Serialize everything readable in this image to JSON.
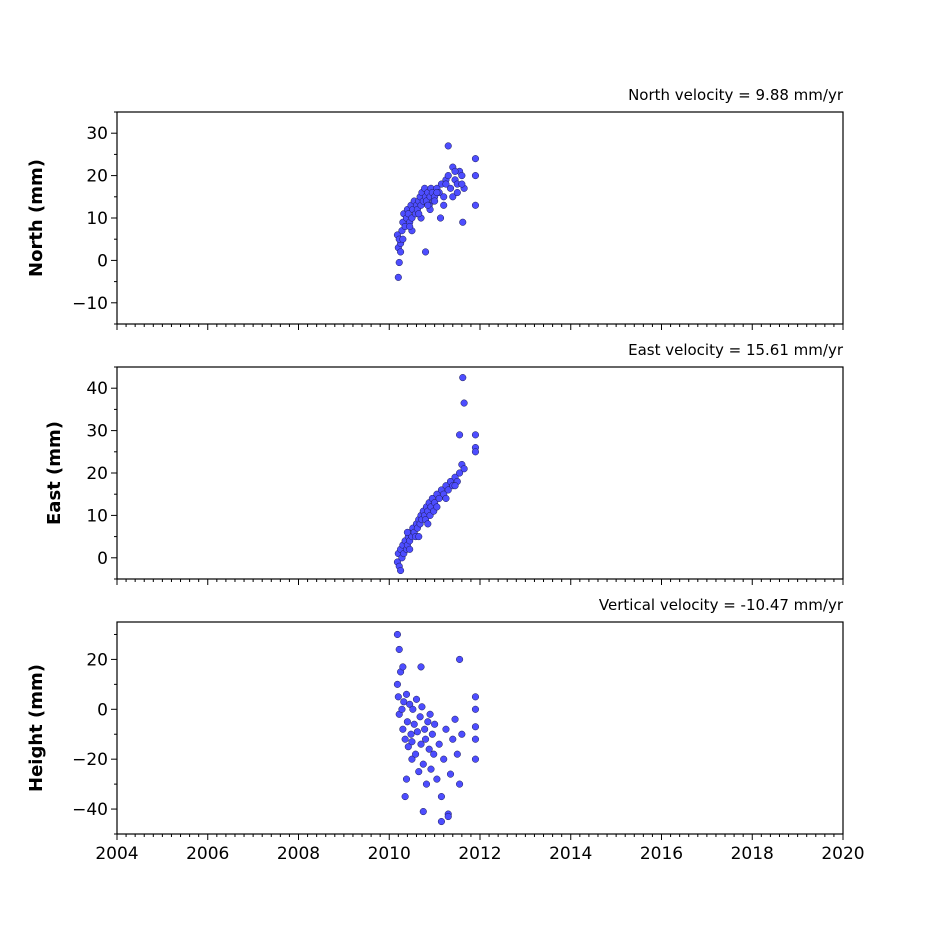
{
  "chart_data": [
    {
      "type": "scatter",
      "title": "North velocity = 9.88 mm/yr",
      "xlabel": "",
      "ylabel": "North (mm)",
      "xlim": [
        2004,
        2020
      ],
      "ylim": [
        -15,
        35
      ],
      "yticks": [
        -10,
        0,
        10,
        20,
        30
      ],
      "point_color": "#4d4dff",
      "x": [
        2010.18,
        2010.2,
        2010.22,
        2010.25,
        2010.28,
        2010.3,
        2010.32,
        2010.35,
        2010.38,
        2010.4,
        2010.42,
        2010.45,
        2010.48,
        2010.5,
        2010.52,
        2010.55,
        2010.58,
        2010.6,
        2010.62,
        2010.65,
        2010.68,
        2010.7,
        2010.72,
        2010.75,
        2010.78,
        2010.8,
        2010.82,
        2010.85,
        2010.88,
        2010.9,
        2010.92,
        2010.95,
        2010.98,
        2011.0,
        2011.05,
        2011.1,
        2011.15,
        2011.2,
        2011.25,
        2011.3,
        2011.35,
        2011.4,
        2011.45,
        2011.5,
        2011.55,
        2011.6,
        2011.65,
        2011.9,
        2011.9,
        2011.9,
        2010.2,
        2010.22,
        2010.8,
        2011.3,
        2011.62,
        2011.13,
        2010.3,
        2010.5,
        2010.7,
        2010.9,
        2011.0,
        2011.2,
        2011.4,
        2011.5,
        2011.6,
        2010.25,
        2010.45,
        2010.65,
        2010.85,
        2011.05,
        2011.25,
        2011.45
      ],
      "y": [
        6,
        3,
        -0.5,
        4,
        7,
        9,
        11,
        8,
        10,
        12,
        11,
        9,
        13,
        10,
        12,
        14,
        11,
        13,
        12,
        14,
        15,
        13,
        16,
        14,
        17,
        15,
        14,
        16,
        13,
        15,
        17,
        16,
        14,
        15,
        17,
        16,
        18,
        15,
        19,
        20,
        17,
        22,
        19,
        18,
        21,
        20,
        17,
        24,
        20,
        13,
        -4,
        5,
        2,
        27,
        9,
        10,
        5,
        7,
        10,
        12,
        14,
        13,
        15,
        16,
        18,
        2,
        8,
        11,
        13,
        16,
        18,
        21
      ]
    },
    {
      "type": "scatter",
      "title": "East velocity = 15.61 mm/yr",
      "xlabel": "",
      "ylabel": "East (mm)",
      "xlim": [
        2004,
        2020
      ],
      "ylim": [
        -5,
        45
      ],
      "yticks": [
        0,
        10,
        20,
        30,
        40
      ],
      "point_color": "#4d4dff",
      "x": [
        2010.18,
        2010.2,
        2010.22,
        2010.25,
        2010.28,
        2010.3,
        2010.32,
        2010.35,
        2010.38,
        2010.4,
        2010.42,
        2010.45,
        2010.48,
        2010.5,
        2010.52,
        2010.55,
        2010.58,
        2010.6,
        2010.62,
        2010.65,
        2010.68,
        2010.7,
        2010.72,
        2010.75,
        2010.78,
        2010.8,
        2010.82,
        2010.85,
        2010.88,
        2010.9,
        2010.92,
        2010.95,
        2010.98,
        2011.0,
        2011.05,
        2011.1,
        2011.15,
        2011.2,
        2011.25,
        2011.3,
        2011.35,
        2011.4,
        2011.45,
        2011.5,
        2011.55,
        2011.6,
        2011.65,
        2011.62,
        2011.65,
        2011.9,
        2011.9,
        2011.9,
        2010.4,
        2010.25,
        2010.45,
        2010.65,
        2010.85,
        2011.05,
        2011.25,
        2011.45,
        2011.55
      ],
      "y": [
        -1,
        1,
        -2,
        2,
        0,
        3,
        1,
        4,
        2,
        3,
        5,
        4,
        6,
        5,
        7,
        6,
        5,
        8,
        7,
        9,
        8,
        10,
        9,
        11,
        10,
        9,
        12,
        11,
        13,
        10,
        12,
        14,
        11,
        13,
        15,
        14,
        16,
        15,
        17,
        16,
        18,
        17,
        19,
        18,
        20,
        22,
        21,
        42.5,
        36.5,
        29,
        26,
        25,
        6,
        -3,
        2,
        5,
        8,
        12,
        14,
        17,
        29
      ],
      "annotations": []
    },
    {
      "type": "scatter",
      "title": "Vertical velocity = -10.47 mm/yr",
      "xlabel": "",
      "ylabel": "Height (mm)",
      "xlim": [
        2004,
        2020
      ],
      "ylim": [
        -50,
        35
      ],
      "yticks": [
        -40,
        -20,
        0,
        20
      ],
      "xticks": [
        2004,
        2006,
        2008,
        2010,
        2012,
        2014,
        2016,
        2018,
        2020
      ],
      "point_color": "#4d4dff",
      "x": [
        2010.18,
        2010.2,
        2010.22,
        2010.25,
        2010.28,
        2010.3,
        2010.32,
        2010.35,
        2010.38,
        2010.4,
        2010.42,
        2010.45,
        2010.48,
        2010.5,
        2010.52,
        2010.55,
        2010.58,
        2010.6,
        2010.62,
        2010.65,
        2010.68,
        2010.7,
        2010.72,
        2010.75,
        2010.78,
        2010.8,
        2010.82,
        2010.85,
        2010.88,
        2010.9,
        2010.92,
        2010.95,
        2010.98,
        2011.0,
        2011.05,
        2011.1,
        2011.15,
        2011.2,
        2011.25,
        2011.3,
        2011.35,
        2011.4,
        2011.45,
        2011.5,
        2011.55,
        2011.6,
        2011.9,
        2011.9,
        2011.9,
        2011.9,
        2011.9,
        2010.18,
        2010.22,
        2010.38,
        2010.3,
        2010.35,
        2010.7,
        2011.15,
        2011.55,
        2010.75,
        2010.5,
        2011.3
      ],
      "y": [
        10,
        5,
        -2,
        15,
        0,
        -8,
        3,
        -12,
        6,
        -5,
        -15,
        2,
        -10,
        -20,
        0,
        -6,
        -18,
        4,
        -9,
        -25,
        -3,
        -14,
        1,
        -22,
        -8,
        -12,
        -30,
        -5,
        -16,
        -2,
        -24,
        -10,
        -18,
        -6,
        -28,
        -14,
        -35,
        -20,
        -8,
        -42,
        -26,
        -12,
        -4,
        -18,
        -30,
        -10,
        5,
        0,
        -7,
        -12,
        -20,
        30,
        24,
        -28,
        17,
        -35,
        17,
        -45,
        20,
        -41,
        -13,
        -43
      ]
    }
  ]
}
